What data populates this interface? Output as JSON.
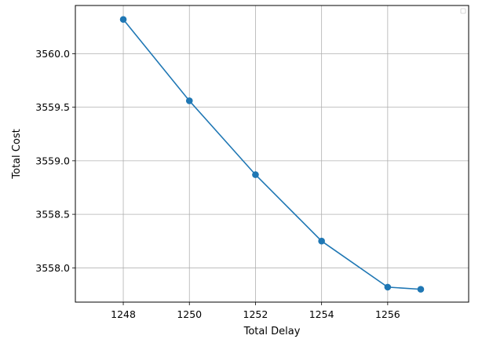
{
  "chart_data": {
    "type": "line",
    "title": "",
    "xlabel": "Total Delay",
    "ylabel": "Total Cost",
    "x": [
      1248,
      1250,
      1252,
      1254,
      1256,
      1257
    ],
    "series": [
      {
        "values": [
          3560.32,
          3559.56,
          3558.87,
          3558.25,
          3557.82,
          3557.8
        ]
      }
    ],
    "xlim": [
      1246.55,
      1258.45
    ],
    "ylim": [
      3557.68,
      3560.45
    ],
    "xticks": [
      1248,
      1250,
      1252,
      1254,
      1256
    ],
    "yticks": [
      3558.0,
      3558.5,
      3559.0,
      3559.5,
      3560.0
    ],
    "xtick_labels": [
      "1248",
      "1250",
      "1252",
      "1254",
      "1256"
    ],
    "ytick_labels": [
      "3558.0",
      "3558.5",
      "3559.0",
      "3559.5",
      "3560.0"
    ],
    "grid": true,
    "legend": "top-right (empty)",
    "line_color": "#1f77b4",
    "grid_color": "#b0b0b0"
  }
}
